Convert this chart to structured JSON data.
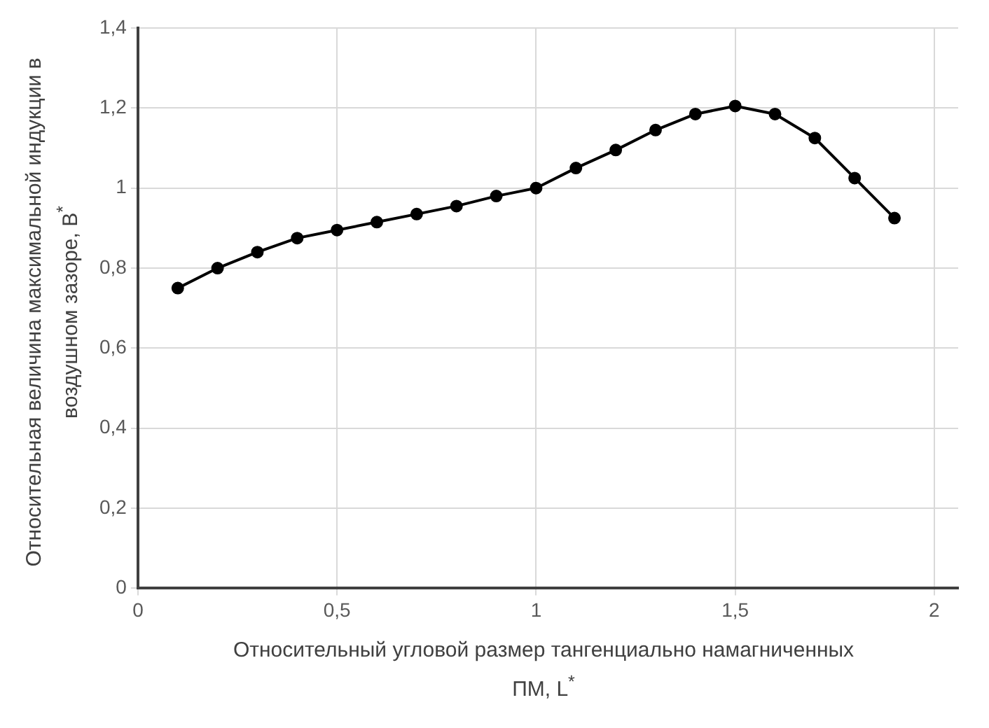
{
  "chart_data": {
    "type": "line",
    "xlabel": "Относительный угловой размер тангенциально намагниченных ПМ, L$^{*}$",
    "ylabel": "Относительная величина максимальной индукции в воздушном зазоре, B$^{*}$",
    "x": [
      0.1,
      0.2,
      0.3,
      0.4,
      0.5,
      0.6,
      0.7,
      0.8,
      0.9,
      1.0,
      1.1,
      1.2,
      1.3,
      1.4,
      1.5,
      1.6,
      1.7,
      1.8,
      1.9
    ],
    "series": [
      {
        "color": "#000000",
        "values": [
          0.75,
          0.8,
          0.84,
          0.875,
          0.895,
          0.915,
          0.935,
          0.955,
          0.98,
          1.0,
          1.05,
          1.095,
          1.145,
          1.185,
          1.205,
          1.185,
          1.125,
          1.025,
          0.925
        ]
      }
    ],
    "xlim": [
      0,
      2.06
    ],
    "xticks": [
      {
        "value": 0,
        "label": "0"
      },
      {
        "value": 0.5,
        "label": "0,5"
      },
      {
        "value": 1,
        "label": "1"
      },
      {
        "value": 1.5,
        "label": "1,5"
      },
      {
        "value": 2,
        "label": "2"
      }
    ],
    "ylim": [
      0,
      1.4
    ],
    "yticks": [
      {
        "value": 0,
        "label": "0"
      },
      {
        "value": 0.2,
        "label": "0,2"
      },
      {
        "value": 0.4,
        "label": "0,4"
      },
      {
        "value": 0.6,
        "label": "0,6"
      },
      {
        "value": 0.8,
        "label": "0,8"
      },
      {
        "value": 1,
        "label": "1"
      },
      {
        "value": 1.2,
        "label": "1,2"
      },
      {
        "value": 1.4,
        "label": "1,4"
      }
    ],
    "grid": true,
    "legend": false,
    "marker": "circle",
    "line_style": "solid"
  }
}
